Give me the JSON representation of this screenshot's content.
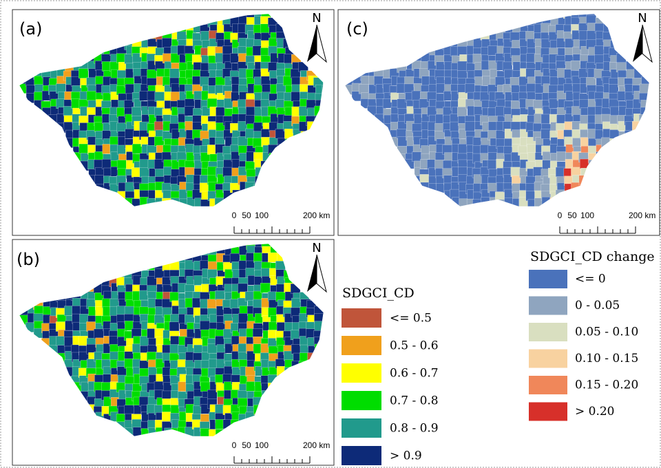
{
  "panels": [
    {
      "label": "(a)"
    },
    {
      "label": "(b)"
    },
    {
      "label": "(c)"
    }
  ],
  "north": "N",
  "scale_bar": [
    "0",
    "50",
    "100",
    "200 km"
  ],
  "legend_cd": {
    "title": "SDGCI_CD",
    "items": [
      {
        "label": "<= 0.5",
        "color": "#c0553a"
      },
      {
        "label": "0.5 - 0.6",
        "color": "#f0a01c"
      },
      {
        "label": "0.6 - 0.7",
        "color": "#ffff00"
      },
      {
        "label": "0.7 - 0.8",
        "color": "#00dd00"
      },
      {
        "label": "0.8 - 0.9",
        "color": "#219a8c"
      },
      {
        "label": "> 0.9",
        "color": "#0d2a78"
      }
    ]
  },
  "legend_change": {
    "title": "SDGCI_CD change",
    "items": [
      {
        "label": "<= 0",
        "color": "#4a72bb"
      },
      {
        "label": "0 - 0.05",
        "color": "#8fa5bf"
      },
      {
        "label": "0.05 - 0.10",
        "color": "#d9dfc0"
      },
      {
        "label": "0.10 - 0.15",
        "color": "#f8d2a0"
      },
      {
        "label": "0.15 - 0.20",
        "color": "#f0875a"
      },
      {
        "label": "> 0.20",
        "color": "#d7302a"
      }
    ]
  }
}
